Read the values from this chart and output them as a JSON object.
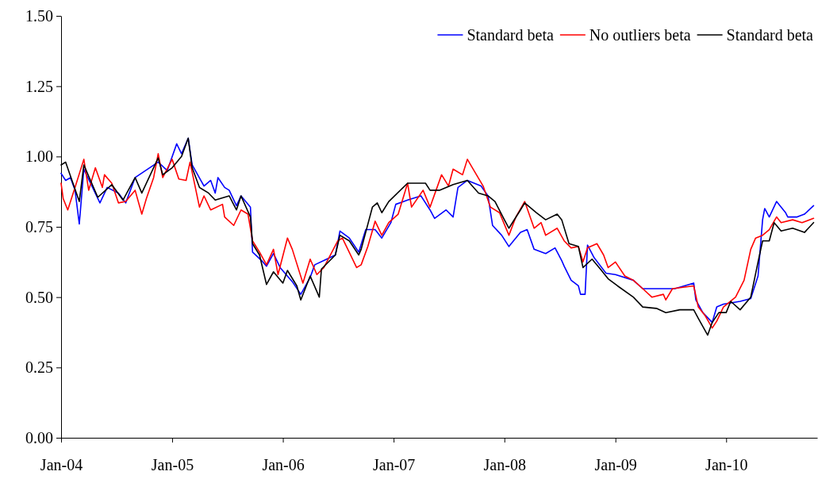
{
  "chart_data": {
    "type": "line",
    "legend": "top right",
    "marker": "none",
    "line_style": "solid",
    "grid": false,
    "xlim": [
      "2004-01-01",
      "2010-10-28"
    ],
    "xticks": [
      {
        "value": "2004-01-01",
        "label": "Jan-04"
      },
      {
        "value": "2005-01-01",
        "label": "Jan-05"
      },
      {
        "value": "2006-01-01",
        "label": "Jan-06"
      },
      {
        "value": "2007-01-01",
        "label": "Jan-07"
      },
      {
        "value": "2008-01-01",
        "label": "Jan-08"
      },
      {
        "value": "2009-01-01",
        "label": "Jan-09"
      },
      {
        "value": "2010-01-01",
        "label": "Jan-10"
      }
    ],
    "ylim": [
      0,
      1.5
    ],
    "yticks": [
      {
        "value": 0,
        "label": "0.00"
      },
      {
        "value": 0.25,
        "label": "0.25"
      },
      {
        "value": 0.5,
        "label": "0.50"
      },
      {
        "value": 0.75,
        "label": "0.75"
      },
      {
        "value": 1,
        "label": "1.00"
      },
      {
        "value": 1.25,
        "label": "1.25"
      },
      {
        "value": 1.5,
        "label": "1.50"
      }
    ],
    "series": [
      {
        "name": "Standard beta",
        "color": "#0000ff",
        "x": [
          "2004-01-01",
          "2004-01-16",
          "2004-02-01",
          "2004-02-16",
          "2004-03-01",
          "2004-03-16",
          "2004-05-08",
          "2004-06-01",
          "2004-07-08",
          "2004-08-01",
          "2004-09-01",
          "2004-11-16",
          "2004-12-16",
          "2005-01-16",
          "2005-02-01",
          "2005-02-23",
          "2005-03-08",
          "2005-04-16",
          "2005-05-08",
          "2005-05-23",
          "2005-06-01",
          "2005-06-23",
          "2005-07-08",
          "2005-08-01",
          "2005-08-16",
          "2005-09-16",
          "2005-09-23",
          "2005-10-23",
          "2005-11-08",
          "2005-12-01",
          "2005-12-23",
          "2006-02-01",
          "2006-03-01",
          "2006-04-01",
          "2006-04-16",
          "2006-05-16",
          "2006-06-23",
          "2006-07-08",
          "2006-08-08",
          "2006-09-08",
          "2006-10-01",
          "2006-11-01",
          "2006-11-23",
          "2006-12-23",
          "2007-01-08",
          "2007-02-16",
          "2007-04-01",
          "2007-05-01",
          "2007-05-16",
          "2007-06-23",
          "2007-07-16",
          "2007-08-01",
          "2007-09-01",
          "2007-10-16",
          "2007-11-08",
          "2007-11-23",
          "2007-12-23",
          "2008-01-16",
          "2008-02-23",
          "2008-03-16",
          "2008-04-08",
          "2008-05-16",
          "2008-06-16",
          "2008-07-08",
          "2008-07-16",
          "2008-08-08",
          "2008-09-01",
          "2008-09-08",
          "2008-09-23",
          "2008-10-01",
          "2008-10-23",
          "2008-12-01",
          "2009-01-01",
          "2009-03-01",
          "2009-04-01",
          "2009-07-16",
          "2009-09-16",
          "2009-09-23",
          "2009-10-16",
          "2009-11-16",
          "2009-12-01",
          "2009-12-23",
          "2010-02-16",
          "2010-03-23",
          "2010-04-16",
          "2010-05-01",
          "2010-05-08",
          "2010-05-23",
          "2010-06-16",
          "2010-07-16",
          "2010-07-23",
          "2010-08-23",
          "2010-09-16",
          "2010-10-16"
        ],
        "values": [
          0.94,
          0.915,
          0.925,
          0.88,
          0.76,
          0.955,
          0.835,
          0.89,
          0.87,
          0.835,
          0.925,
          0.98,
          0.95,
          1.045,
          1.01,
          1.065,
          0.97,
          0.895,
          0.915,
          0.87,
          0.925,
          0.89,
          0.88,
          0.825,
          0.86,
          0.82,
          0.66,
          0.63,
          0.61,
          0.655,
          0.605,
          0.555,
          0.51,
          0.57,
          0.615,
          0.63,
          0.65,
          0.735,
          0.71,
          0.66,
          0.74,
          0.74,
          0.71,
          0.765,
          0.83,
          0.845,
          0.86,
          0.81,
          0.78,
          0.81,
          0.785,
          0.89,
          0.915,
          0.895,
          0.86,
          0.755,
          0.72,
          0.68,
          0.73,
          0.74,
          0.67,
          0.655,
          0.675,
          0.63,
          0.61,
          0.56,
          0.54,
          0.51,
          0.51,
          0.685,
          0.64,
          0.585,
          0.58,
          0.56,
          0.53,
          0.53,
          0.55,
          0.49,
          0.445,
          0.41,
          0.465,
          0.475,
          0.485,
          0.495,
          0.575,
          0.775,
          0.815,
          0.785,
          0.84,
          0.8,
          0.785,
          0.785,
          0.795,
          0.825
        ]
      },
      {
        "name": "No outliers beta",
        "color": "#ff0000",
        "x": [
          "2004-01-01",
          "2004-01-08",
          "2004-01-23",
          "2004-02-16",
          "2004-03-16",
          "2004-04-01",
          "2004-04-23",
          "2004-05-16",
          "2004-05-23",
          "2004-06-16",
          "2004-07-08",
          "2004-08-01",
          "2004-09-01",
          "2004-09-23",
          "2004-10-08",
          "2004-11-01",
          "2004-11-16",
          "2004-12-01",
          "2005-01-01",
          "2005-01-23",
          "2005-02-16",
          "2005-03-01",
          "2005-04-01",
          "2005-04-16",
          "2005-05-08",
          "2005-06-16",
          "2005-06-23",
          "2005-07-23",
          "2005-08-16",
          "2005-09-08",
          "2005-09-23",
          "2005-10-16",
          "2005-11-08",
          "2005-12-01",
          "2005-12-16",
          "2006-01-16",
          "2006-02-01",
          "2006-03-08",
          "2006-04-01",
          "2006-04-23",
          "2006-05-16",
          "2006-07-01",
          "2006-07-16",
          "2006-09-01",
          "2006-09-16",
          "2006-10-08",
          "2006-11-01",
          "2006-11-23",
          "2006-12-16",
          "2007-01-16",
          "2007-02-16",
          "2007-03-01",
          "2007-04-08",
          "2007-05-01",
          "2007-06-08",
          "2007-07-01",
          "2007-07-16",
          "2007-08-16",
          "2007-09-01",
          "2007-10-01",
          "2007-10-23",
          "2007-11-16",
          "2007-12-16",
          "2008-01-16",
          "2008-02-08",
          "2008-03-08",
          "2008-04-08",
          "2008-05-01",
          "2008-05-16",
          "2008-06-23",
          "2008-07-16",
          "2008-08-08",
          "2008-09-01",
          "2008-09-16",
          "2008-10-01",
          "2008-11-01",
          "2008-11-23",
          "2008-12-08",
          "2009-01-01",
          "2009-02-01",
          "2009-03-01",
          "2009-04-01",
          "2009-05-01",
          "2009-06-08",
          "2009-06-16",
          "2009-07-08",
          "2009-09-16",
          "2009-10-01",
          "2009-10-23",
          "2009-11-16",
          "2009-12-01",
          "2009-12-23",
          "2010-02-01",
          "2010-03-01",
          "2010-03-23",
          "2010-04-08",
          "2010-05-01",
          "2010-05-23",
          "2010-06-16",
          "2010-07-01",
          "2010-08-08",
          "2010-09-08",
          "2010-10-16"
        ],
        "values": [
          0.905,
          0.85,
          0.81,
          0.89,
          0.99,
          0.88,
          0.96,
          0.89,
          0.935,
          0.905,
          0.835,
          0.84,
          0.88,
          0.795,
          0.85,
          0.925,
          1.01,
          0.925,
          0.99,
          0.92,
          0.915,
          0.98,
          0.82,
          0.86,
          0.81,
          0.83,
          0.785,
          0.755,
          0.81,
          0.795,
          0.7,
          0.66,
          0.615,
          0.67,
          0.58,
          0.71,
          0.67,
          0.55,
          0.635,
          0.58,
          0.605,
          0.7,
          0.71,
          0.605,
          0.615,
          0.68,
          0.77,
          0.72,
          0.765,
          0.795,
          0.905,
          0.82,
          0.88,
          0.82,
          0.935,
          0.895,
          0.955,
          0.935,
          0.99,
          0.935,
          0.895,
          0.82,
          0.8,
          0.72,
          0.785,
          0.84,
          0.745,
          0.765,
          0.72,
          0.745,
          0.7,
          0.675,
          0.68,
          0.625,
          0.675,
          0.69,
          0.65,
          0.605,
          0.625,
          0.575,
          0.56,
          0.53,
          0.5,
          0.51,
          0.49,
          0.53,
          0.54,
          0.465,
          0.435,
          0.39,
          0.415,
          0.465,
          0.5,
          0.56,
          0.67,
          0.71,
          0.72,
          0.74,
          0.785,
          0.765,
          0.775,
          0.765,
          0.78
        ]
      },
      {
        "name": "Standard beta",
        "color": "#000000",
        "x": [
          "2004-01-01",
          "2004-01-16",
          "2004-03-01",
          "2004-03-16",
          "2004-05-01",
          "2004-06-16",
          "2004-07-23",
          "2004-09-01",
          "2004-09-23",
          "2004-11-16",
          "2004-12-01",
          "2005-01-01",
          "2005-02-01",
          "2005-02-23",
          "2005-03-08",
          "2005-04-01",
          "2005-05-01",
          "2005-05-23",
          "2005-07-08",
          "2005-08-01",
          "2005-08-16",
          "2005-09-16",
          "2005-09-23",
          "2005-10-16",
          "2005-11-08",
          "2005-12-01",
          "2006-01-01",
          "2006-01-16",
          "2006-02-16",
          "2006-03-01",
          "2006-04-01",
          "2006-05-01",
          "2006-05-08",
          "2006-06-23",
          "2006-07-08",
          "2006-08-08",
          "2006-09-08",
          "2006-09-16",
          "2006-10-23",
          "2006-11-08",
          "2006-11-23",
          "2006-12-16",
          "2007-02-16",
          "2007-04-16",
          "2007-05-01",
          "2007-06-01",
          "2007-07-16",
          "2007-09-01",
          "2007-10-08",
          "2007-11-08",
          "2007-12-01",
          "2008-01-01",
          "2008-01-16",
          "2008-02-23",
          "2008-03-08",
          "2008-04-16",
          "2008-05-16",
          "2008-06-23",
          "2008-07-08",
          "2008-08-01",
          "2008-09-01",
          "2008-09-16",
          "2008-10-16",
          "2008-11-16",
          "2008-12-08",
          "2009-01-08",
          "2009-03-01",
          "2009-04-01",
          "2009-05-16",
          "2009-06-16",
          "2009-08-01",
          "2009-09-16",
          "2009-10-01",
          "2009-11-01",
          "2009-11-16",
          "2009-12-08",
          "2010-01-01",
          "2010-01-16",
          "2010-02-16",
          "2010-03-23",
          "2010-04-16",
          "2010-05-01",
          "2010-05-23",
          "2010-06-08",
          "2010-07-01",
          "2010-08-08",
          "2010-09-16",
          "2010-10-16"
        ],
        "values": [
          0.97,
          0.98,
          0.84,
          0.97,
          0.855,
          0.9,
          0.845,
          0.925,
          0.87,
          0.995,
          0.935,
          0.96,
          1.0,
          1.065,
          0.96,
          0.89,
          0.87,
          0.845,
          0.86,
          0.81,
          0.86,
          0.785,
          0.69,
          0.65,
          0.545,
          0.59,
          0.55,
          0.595,
          0.54,
          0.49,
          0.575,
          0.5,
          0.6,
          0.65,
          0.72,
          0.7,
          0.65,
          0.67,
          0.82,
          0.835,
          0.8,
          0.84,
          0.905,
          0.905,
          0.88,
          0.88,
          0.9,
          0.915,
          0.87,
          0.86,
          0.84,
          0.775,
          0.745,
          0.81,
          0.835,
          0.8,
          0.775,
          0.795,
          0.775,
          0.69,
          0.68,
          0.605,
          0.635,
          0.595,
          0.565,
          0.54,
          0.5,
          0.465,
          0.46,
          0.445,
          0.455,
          0.455,
          0.425,
          0.365,
          0.41,
          0.445,
          0.445,
          0.485,
          0.455,
          0.5,
          0.625,
          0.7,
          0.7,
          0.765,
          0.735,
          0.745,
          0.73,
          0.765
        ]
      }
    ]
  }
}
